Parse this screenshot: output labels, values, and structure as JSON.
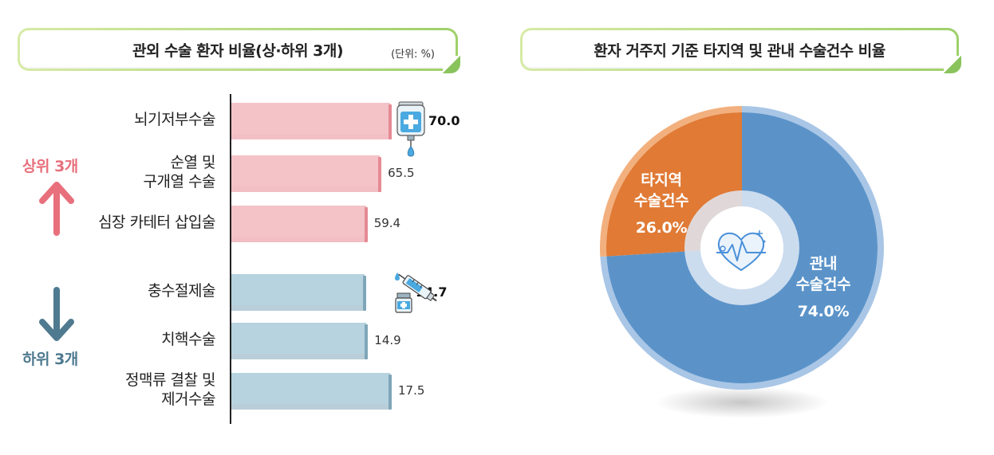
{
  "left_panel": {
    "title": "관외 수술 환자 비율(상·하위 3개)",
    "unit": "(단위: %)",
    "top_group_label": "상위 3개",
    "bottom_group_label": "하위 3개"
  },
  "right_panel": {
    "title": "환자 거주지 기준 타지역 및 관내 수술건수 비율"
  },
  "colors": {
    "top_bar": "#f3c3c8",
    "top_bar_shade": "#e58a94",
    "bottom_bar": "#b6d3df",
    "bottom_bar_shade": "#7fa6b8",
    "pie_local": "#5b93c9",
    "pie_other": "#e07a35",
    "up_arrow": "#e8707c",
    "down_arrow": "#4f7a90"
  },
  "chart_data": [
    {
      "type": "bar",
      "orientation": "horizontal",
      "categories": [
        [
          "뇌기저부수술"
        ],
        [
          "순열 및",
          "구개열 수술"
        ],
        [
          "심장 카테터 삽입술"
        ],
        [
          "충수절제술"
        ],
        [
          "치핵수술"
        ],
        [
          "정맥류 결찰 및",
          "제거수술"
        ]
      ],
      "values": [
        70.0,
        65.5,
        59.4,
        14.7,
        14.9,
        17.5
      ],
      "value_labels": [
        "70.0",
        "65.5",
        "59.4",
        "14.7",
        "14.9",
        "17.5"
      ],
      "groups": [
        "상위 3개",
        "상위 3개",
        "상위 3개",
        "하위 3개",
        "하위 3개",
        "하위 3개"
      ],
      "emphasized": [
        true,
        false,
        false,
        true,
        false,
        false
      ],
      "title": "관외 수술 환자 비율(상·하위 3개)",
      "unit": "%",
      "xlim": [
        0,
        80
      ],
      "grid": false
    },
    {
      "type": "pie",
      "style": "donut",
      "slices": [
        {
          "lines": [
            "관내",
            "수술건수"
          ],
          "value": 74.0,
          "value_label": "74.0%"
        },
        {
          "lines": [
            "타지역",
            "수술건수"
          ],
          "value": 26.0,
          "value_label": "26.0%"
        }
      ],
      "title": "환자 거주지 기준 타지역 및 관내 수술건수 비율"
    }
  ]
}
